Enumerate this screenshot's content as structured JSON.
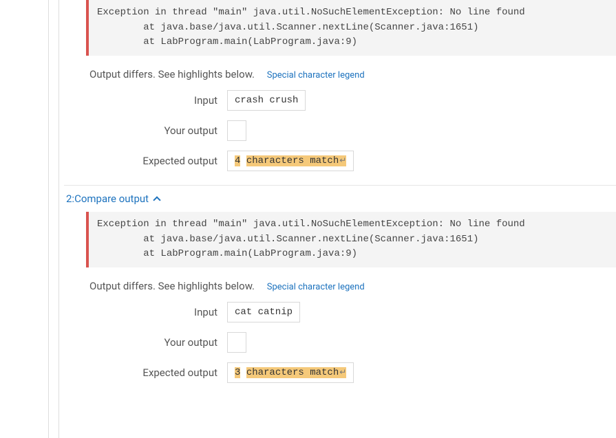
{
  "test1": {
    "exception_line1": "Exception in thread \"main\" java.util.NoSuchElementException: No line found",
    "exception_line2": "        at java.base/java.util.Scanner.nextLine(Scanner.java:1651)",
    "exception_line3": "        at LabProgram.main(LabProgram.java:9)",
    "differs_text": "Output differs. See highlights below.",
    "legend_text": "Special character legend",
    "input_label": "Input",
    "input_value": "crash crush",
    "your_output_label": "Your output",
    "your_output_value": "",
    "expected_output_label": "Expected output",
    "expected_hl_num": "4",
    "expected_hl_rest": "characters match"
  },
  "section2": {
    "header": "2:Compare output"
  },
  "test2": {
    "exception_line1": "Exception in thread \"main\" java.util.NoSuchElementException: No line found",
    "exception_line2": "        at java.base/java.util.Scanner.nextLine(Scanner.java:1651)",
    "exception_line3": "        at LabProgram.main(LabProgram.java:9)",
    "differs_text": "Output differs. See highlights below.",
    "legend_text": "Special character legend",
    "input_label": "Input",
    "input_value": "cat catnip",
    "your_output_label": "Your output",
    "your_output_value": "",
    "expected_output_label": "Expected output",
    "expected_hl_num": "3",
    "expected_hl_rest": "characters match"
  },
  "colors": {
    "error_border": "#d9534f",
    "link": "#1e73be",
    "highlight": "#f5c97a",
    "box_border": "#d8d8d8"
  }
}
